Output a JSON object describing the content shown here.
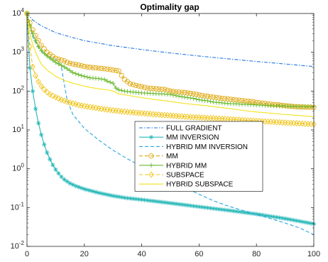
{
  "chart_data": {
    "type": "line",
    "title": "Optimality gap",
    "xlabel": "",
    "ylabel": "",
    "xlim": [
      0,
      100
    ],
    "ylim": [
      0.01,
      10000
    ],
    "yscale": "log",
    "grid": false,
    "legend_position": "center",
    "x_ticks": [
      "0",
      "20",
      "40",
      "60",
      "80",
      "100"
    ],
    "y_ticks": [
      {
        "base": "10",
        "exp": "-2"
      },
      {
        "base": "10",
        "exp": "-1"
      },
      {
        "base": "10",
        "exp": "0"
      },
      {
        "base": "10",
        "exp": "1"
      },
      {
        "base": "10",
        "exp": "2"
      },
      {
        "base": "10",
        "exp": "3"
      },
      {
        "base": "10",
        "exp": "4"
      }
    ],
    "series": [
      {
        "name": "FULL GRADIENT",
        "color": "#1f77e0",
        "style": "dashdot",
        "marker": "none",
        "points": [
          [
            0,
            10000
          ],
          [
            2,
            6800
          ],
          [
            5,
            4800
          ],
          [
            10,
            3200
          ],
          [
            15,
            2500
          ],
          [
            20,
            2000
          ],
          [
            30,
            1480
          ],
          [
            40,
            1180
          ],
          [
            50,
            960
          ],
          [
            60,
            800
          ],
          [
            70,
            680
          ],
          [
            80,
            580
          ],
          [
            90,
            500
          ],
          [
            100,
            430
          ]
        ]
      },
      {
        "name": "MM INVERSION",
        "color": "#26b7b7",
        "style": "solid",
        "marker": "asterisk",
        "points": [
          [
            0,
            10000
          ],
          [
            1,
            400
          ],
          [
            2,
            100
          ],
          [
            3,
            35
          ],
          [
            4,
            15
          ],
          [
            5,
            7.5
          ],
          [
            6,
            4.2
          ],
          [
            7,
            2.6
          ],
          [
            8,
            1.75
          ],
          [
            9,
            1.25
          ],
          [
            10,
            0.95
          ],
          [
            11,
            0.76
          ],
          [
            12,
            0.62
          ],
          [
            13,
            0.53
          ],
          [
            14,
            0.47
          ],
          [
            15,
            0.42
          ],
          [
            17,
            0.36
          ],
          [
            20,
            0.3
          ],
          [
            25,
            0.24
          ],
          [
            30,
            0.2
          ],
          [
            35,
            0.175
          ],
          [
            40,
            0.16
          ],
          [
            50,
            0.13
          ],
          [
            60,
            0.105
          ],
          [
            70,
            0.085
          ],
          [
            80,
            0.068
          ],
          [
            90,
            0.052
          ],
          [
            100,
            0.038
          ]
        ]
      },
      {
        "name": "HYBRID MM INVERSION",
        "color": "#27a6dd",
        "style": "dashed",
        "marker": "none",
        "points": [
          [
            0,
            10000
          ],
          [
            2,
            2500
          ],
          [
            4,
            1300
          ],
          [
            6,
            900
          ],
          [
            8,
            750
          ],
          [
            10,
            650
          ],
          [
            11,
            600
          ],
          [
            12,
            420
          ],
          [
            13,
            150
          ],
          [
            14,
            60
          ],
          [
            16,
            25
          ],
          [
            20,
            11
          ],
          [
            25,
            5.5
          ],
          [
            30,
            3.0
          ],
          [
            35,
            1.8
          ],
          [
            40,
            1.15
          ],
          [
            45,
            0.75
          ],
          [
            50,
            0.5
          ],
          [
            55,
            0.33
          ],
          [
            60,
            0.22
          ],
          [
            65,
            0.15
          ],
          [
            70,
            0.11
          ],
          [
            75,
            0.085
          ],
          [
            80,
            0.066
          ],
          [
            85,
            0.052
          ],
          [
            90,
            0.04
          ],
          [
            95,
            0.03
          ],
          [
            100,
            0.02
          ]
        ]
      },
      {
        "name": "MM",
        "color": "#e0a810",
        "style": "dashed",
        "marker": "circle",
        "points": [
          [
            0,
            10000
          ],
          [
            1,
            5800
          ],
          [
            2,
            3800
          ],
          [
            3,
            2700
          ],
          [
            4,
            2000
          ],
          [
            5,
            1500
          ],
          [
            7,
            1000
          ],
          [
            10,
            700
          ],
          [
            13,
            600
          ],
          [
            14,
            550
          ],
          [
            15,
            520
          ],
          [
            16,
            500
          ],
          [
            18,
            470
          ],
          [
            20,
            430
          ],
          [
            22,
            410
          ],
          [
            25,
            390
          ],
          [
            28,
            370
          ],
          [
            30,
            350
          ],
          [
            32,
            330
          ],
          [
            33,
            250
          ],
          [
            34,
            200
          ],
          [
            35,
            175
          ],
          [
            36,
            155
          ],
          [
            38,
            140
          ],
          [
            40,
            130
          ],
          [
            42,
            120
          ],
          [
            45,
            115
          ],
          [
            48,
            110
          ],
          [
            50,
            100
          ],
          [
            52,
            95
          ],
          [
            55,
            92
          ],
          [
            58,
            85
          ],
          [
            60,
            80
          ],
          [
            62,
            75
          ],
          [
            65,
            70
          ],
          [
            68,
            65
          ],
          [
            70,
            63
          ],
          [
            72,
            60
          ],
          [
            75,
            57
          ],
          [
            78,
            54
          ],
          [
            80,
            51
          ],
          [
            83,
            48
          ],
          [
            85,
            46
          ],
          [
            88,
            44
          ],
          [
            90,
            42
          ],
          [
            93,
            40
          ],
          [
            96,
            39
          ],
          [
            100,
            38
          ]
        ]
      },
      {
        "name": "HYBRID MM",
        "color": "#6aba2e",
        "style": "solid",
        "marker": "plus",
        "points": [
          [
            0,
            10000
          ],
          [
            1,
            5000
          ],
          [
            2,
            3000
          ],
          [
            3,
            2000
          ],
          [
            4,
            1400
          ],
          [
            5,
            1100
          ],
          [
            7,
            800
          ],
          [
            10,
            550
          ],
          [
            13,
            420
          ],
          [
            16,
            300
          ],
          [
            19,
            250
          ],
          [
            22,
            220
          ],
          [
            25,
            210
          ],
          [
            27,
            200
          ],
          [
            28,
            180
          ],
          [
            30,
            160
          ],
          [
            31,
            120
          ],
          [
            32,
            108
          ],
          [
            34,
            100
          ],
          [
            36,
            96
          ],
          [
            38,
            93
          ],
          [
            40,
            90
          ],
          [
            43,
            88
          ],
          [
            45,
            86
          ],
          [
            48,
            84
          ],
          [
            50,
            82
          ],
          [
            52,
            76
          ],
          [
            55,
            70
          ],
          [
            58,
            65
          ],
          [
            60,
            60
          ],
          [
            63,
            56
          ],
          [
            65,
            52
          ],
          [
            68,
            50
          ],
          [
            70,
            48
          ],
          [
            73,
            47
          ],
          [
            75,
            46
          ],
          [
            78,
            45
          ],
          [
            80,
            44
          ],
          [
            83,
            43
          ],
          [
            85,
            42
          ],
          [
            88,
            41.5
          ],
          [
            90,
            41
          ],
          [
            93,
            40.5
          ],
          [
            96,
            40
          ],
          [
            100,
            40
          ]
        ]
      },
      {
        "name": "SUBSPACE",
        "color": "#f0c419",
        "style": "dashed",
        "marker": "diamond",
        "points": [
          [
            0,
            10000
          ],
          [
            1,
            1400
          ],
          [
            2,
            420
          ],
          [
            3,
            250
          ],
          [
            4,
            175
          ],
          [
            5,
            135
          ],
          [
            6,
            110
          ],
          [
            7,
            94
          ],
          [
            8,
            82
          ],
          [
            10,
            70
          ],
          [
            12,
            60
          ],
          [
            14,
            53
          ],
          [
            16,
            48
          ],
          [
            18,
            44
          ],
          [
            20,
            41
          ],
          [
            23,
            38
          ],
          [
            26,
            35
          ],
          [
            30,
            32
          ],
          [
            35,
            29
          ],
          [
            40,
            27
          ],
          [
            45,
            25
          ],
          [
            50,
            23.5
          ],
          [
            55,
            22
          ],
          [
            60,
            21
          ],
          [
            65,
            20
          ],
          [
            70,
            19
          ],
          [
            75,
            18
          ],
          [
            80,
            17
          ],
          [
            85,
            16.2
          ],
          [
            90,
            15.4
          ],
          [
            95,
            14.7
          ],
          [
            100,
            14
          ]
        ]
      },
      {
        "name": "HYBRID SUBSPACE",
        "color": "#f2e219",
        "style": "solid",
        "marker": "none",
        "points": [
          [
            0,
            10000
          ],
          [
            1,
            3000
          ],
          [
            2,
            1600
          ],
          [
            3,
            1000
          ],
          [
            4,
            700
          ],
          [
            5,
            500
          ],
          [
            7,
            350
          ],
          [
            10,
            240
          ],
          [
            13,
            190
          ],
          [
            16,
            160
          ],
          [
            19,
            140
          ],
          [
            22,
            125
          ],
          [
            25,
            115
          ],
          [
            28,
            108
          ],
          [
            30,
            100
          ],
          [
            32,
            85
          ],
          [
            35,
            78
          ],
          [
            40,
            68
          ],
          [
            45,
            60
          ],
          [
            50,
            54
          ],
          [
            55,
            48
          ],
          [
            60,
            44
          ],
          [
            65,
            40
          ],
          [
            70,
            36
          ],
          [
            75,
            32
          ],
          [
            80,
            29
          ],
          [
            85,
            27
          ],
          [
            90,
            25
          ],
          [
            95,
            23.5
          ],
          [
            100,
            22
          ]
        ]
      }
    ]
  }
}
